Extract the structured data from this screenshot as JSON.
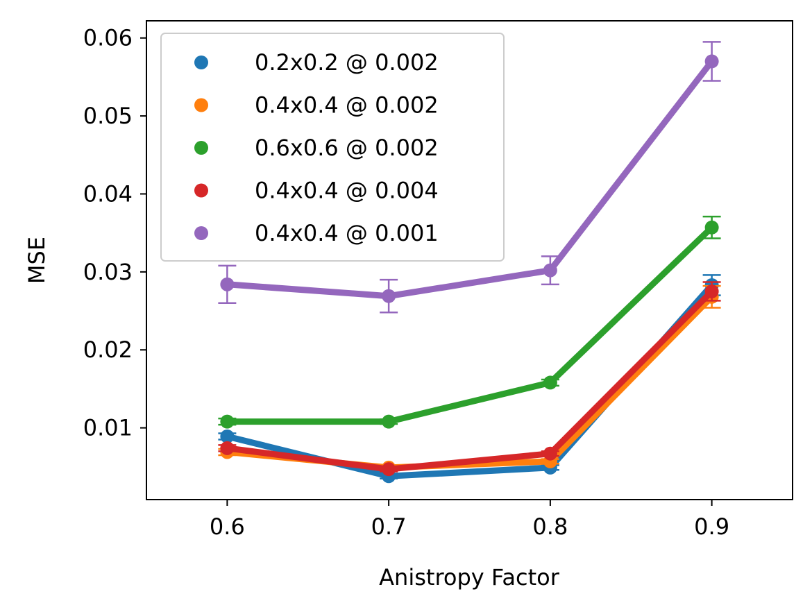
{
  "chart_data": {
    "type": "line",
    "title": "",
    "xlabel": "Anistropy Factor",
    "ylabel": "MSE",
    "x": [
      0.6,
      0.7,
      0.8,
      0.9
    ],
    "xlim": [
      0.55,
      0.95
    ],
    "ylim": [
      0.0008,
      0.0622
    ],
    "xticks": [
      0.6,
      0.7,
      0.8,
      0.9
    ],
    "xtick_labels": [
      "0.6",
      "0.7",
      "0.8",
      "0.9"
    ],
    "yticks": [
      0.01,
      0.02,
      0.03,
      0.04,
      0.05,
      0.06
    ],
    "ytick_labels": [
      "0.01",
      "0.02",
      "0.03",
      "0.04",
      "0.05",
      "0.06"
    ],
    "grid": false,
    "legend_position": "top-left",
    "series": [
      {
        "name": "0.2x0.2 @ 0.002",
        "color": "#1f77b4",
        "values": [
          0.0089,
          0.0038,
          0.0049,
          0.0283
        ],
        "errors": [
          0.0004,
          0.0003,
          0.0003,
          0.0013
        ]
      },
      {
        "name": "0.4x0.4 @ 0.002",
        "color": "#ff7f0e",
        "values": [
          0.0069,
          0.0049,
          0.0057,
          0.0268
        ],
        "errors": [
          0.0004,
          0.0003,
          0.0003,
          0.0014
        ]
      },
      {
        "name": "0.6x0.6 @ 0.002",
        "color": "#2ca02c",
        "values": [
          0.0108,
          0.0108,
          0.0158,
          0.0357
        ],
        "errors": [
          0.0004,
          0.0003,
          0.0004,
          0.0014
        ]
      },
      {
        "name": "0.4x0.4 @ 0.004",
        "color": "#d62728",
        "values": [
          0.0074,
          0.0047,
          0.0067,
          0.0275
        ],
        "errors": [
          0.0004,
          0.0003,
          0.0003,
          0.0012
        ]
      },
      {
        "name": "0.4x0.4 @ 0.001",
        "color": "#9467bd",
        "values": [
          0.0284,
          0.0269,
          0.0302,
          0.057
        ],
        "errors": [
          0.0024,
          0.0021,
          0.0018,
          0.0025
        ]
      }
    ]
  }
}
